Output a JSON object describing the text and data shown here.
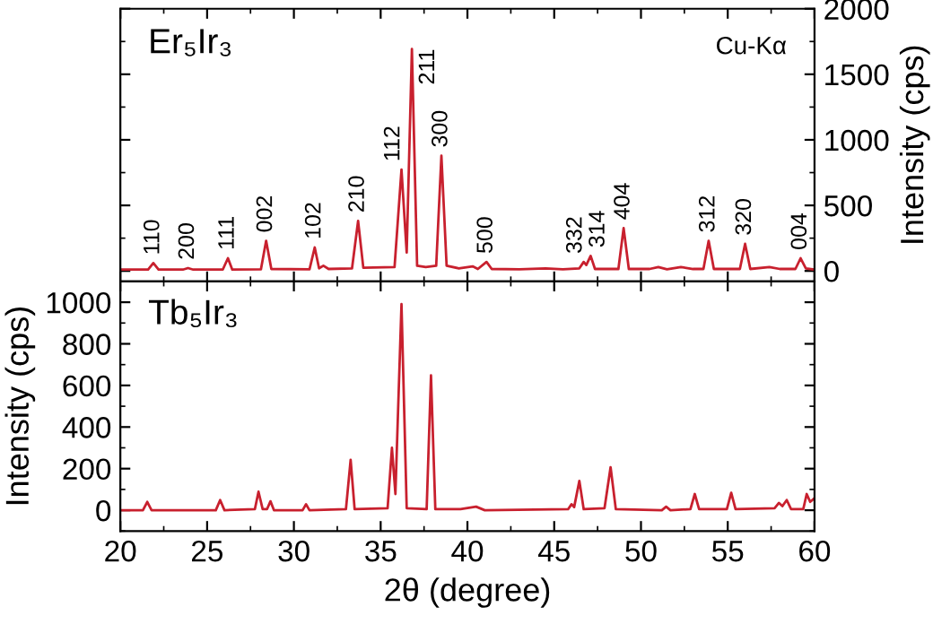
{
  "chart_data": [
    {
      "type": "line",
      "title": "Er₅Ir₃",
      "ylabel": "Intensity (cps)",
      "xlim": [
        20,
        60
      ],
      "xticks": [
        20,
        25,
        30,
        35,
        40,
        45,
        50,
        55,
        60
      ],
      "ylim": [
        -80,
        2000
      ],
      "yticks": [
        0,
        500,
        1000,
        1500,
        2000
      ],
      "tick_labels": "y",
      "grid": false,
      "legend": false,
      "marker": "none",
      "line_style": "solid",
      "annotations": [
        "Cu-Kα",
        {
          "text": "110",
          "x": 21.9,
          "y": 60
        },
        {
          "text": "200",
          "x": 23.9,
          "y": 22
        },
        {
          "text": "111",
          "x": 26.2,
          "y": 97
        },
        {
          "text": "002",
          "x": 28.4,
          "y": 230
        },
        {
          "text": "102",
          "x": 31.2,
          "y": 179
        },
        {
          "text": "210",
          "x": 33.7,
          "y": 382
        },
        {
          "text": "112",
          "x": 36.2,
          "y": 773
        },
        {
          "text": "211",
          "x": 36.8,
          "y": 1693
        },
        {
          "text": "300",
          "x": 38.5,
          "y": 879
        },
        {
          "text": "500",
          "x": 41.1,
          "y": 69
        },
        {
          "text": "332",
          "x": 46.7,
          "y": 69
        },
        {
          "text": "314",
          "x": 47.1,
          "y": 115
        },
        {
          "text": "404",
          "x": 49.0,
          "y": 327
        },
        {
          "text": "312",
          "x": 53.9,
          "y": 230
        },
        {
          "text": "320",
          "x": 56.0,
          "y": 207
        },
        {
          "text": "004",
          "x": 59.2,
          "y": 97
        }
      ],
      "series": [
        {
          "color": "#c8202e",
          "x": [
            20,
            21.6,
            21.9,
            22.2,
            23.6,
            23.9,
            24.2,
            25.9,
            26.2,
            26.45,
            28.1,
            28.4,
            28.7,
            30.9,
            31.2,
            31.45,
            31.7,
            32.0,
            33.35,
            33.7,
            34.0,
            35.8,
            36.2,
            36.5,
            36.8,
            37.1,
            37.6,
            38.2,
            38.5,
            38.8,
            39.5,
            40.3,
            40.6,
            41.1,
            41.4,
            43.0,
            44.5,
            45.5,
            46.45,
            46.7,
            46.85,
            47.1,
            47.35,
            48.7,
            49.0,
            49.3,
            50.5,
            51.0,
            51.5,
            52.3,
            53.0,
            53.6,
            53.9,
            54.2,
            55.7,
            56.0,
            56.3,
            57.4,
            58.0,
            58.9,
            59.2,
            59.5,
            60
          ],
          "values": [
            10,
            10,
            60,
            10,
            10,
            22,
            10,
            10,
            97,
            10,
            12,
            230,
            15,
            12,
            179,
            20,
            40,
            15,
            20,
            382,
            25,
            30,
            773,
            140,
            1693,
            40,
            30,
            40,
            879,
            40,
            20,
            35,
            15,
            69,
            15,
            12,
            20,
            12,
            20,
            69,
            45,
            115,
            15,
            15,
            327,
            15,
            15,
            30,
            12,
            30,
            15,
            15,
            230,
            15,
            15,
            207,
            15,
            30,
            15,
            15,
            97,
            20,
            10
          ]
        }
      ]
    },
    {
      "type": "line",
      "title": "Tb₅Ir₃",
      "xlabel": "2θ (degree)",
      "ylabel": "Intensity (cps)",
      "xlim": [
        20,
        60
      ],
      "xticks": [
        20,
        25,
        30,
        35,
        40,
        45,
        50,
        55,
        60
      ],
      "ylim": [
        -100,
        1100
      ],
      "yticks": [
        0,
        200,
        400,
        600,
        800,
        1000
      ],
      "grid": false,
      "legend": false,
      "marker": "none",
      "line_style": "solid",
      "series": [
        {
          "color": "#c8202e",
          "x": [
            20,
            21.3,
            21.55,
            21.8,
            25.5,
            25.75,
            26.0,
            27.75,
            27.96,
            28.2,
            28.45,
            28.65,
            28.85,
            30.5,
            30.7,
            30.9,
            33.0,
            33.27,
            33.5,
            35.4,
            35.65,
            35.85,
            36.2,
            36.5,
            37.65,
            37.9,
            38.15,
            39.6,
            40.5,
            41.0,
            45.8,
            46.0,
            46.15,
            46.45,
            46.7,
            47.9,
            48.25,
            48.55,
            51.2,
            51.45,
            51.7,
            52.85,
            53.1,
            53.35,
            54.95,
            55.2,
            55.45,
            57.7,
            57.95,
            58.15,
            58.4,
            58.65,
            59.35,
            59.55,
            59.75,
            60
          ],
          "values": [
            0,
            0,
            40,
            0,
            0,
            49,
            0,
            5,
            89,
            5,
            5,
            43,
            0,
            0,
            29,
            0,
            5,
            242,
            5,
            10,
            300,
            78,
            991,
            10,
            5,
            648,
            5,
            5,
            17,
            0,
            5,
            29,
            15,
            141,
            5,
            10,
            207,
            5,
            0,
            17,
            0,
            5,
            78,
            5,
            5,
            84,
            5,
            10,
            35,
            20,
            49,
            5,
            5,
            78,
            40,
            58
          ]
        }
      ]
    }
  ]
}
